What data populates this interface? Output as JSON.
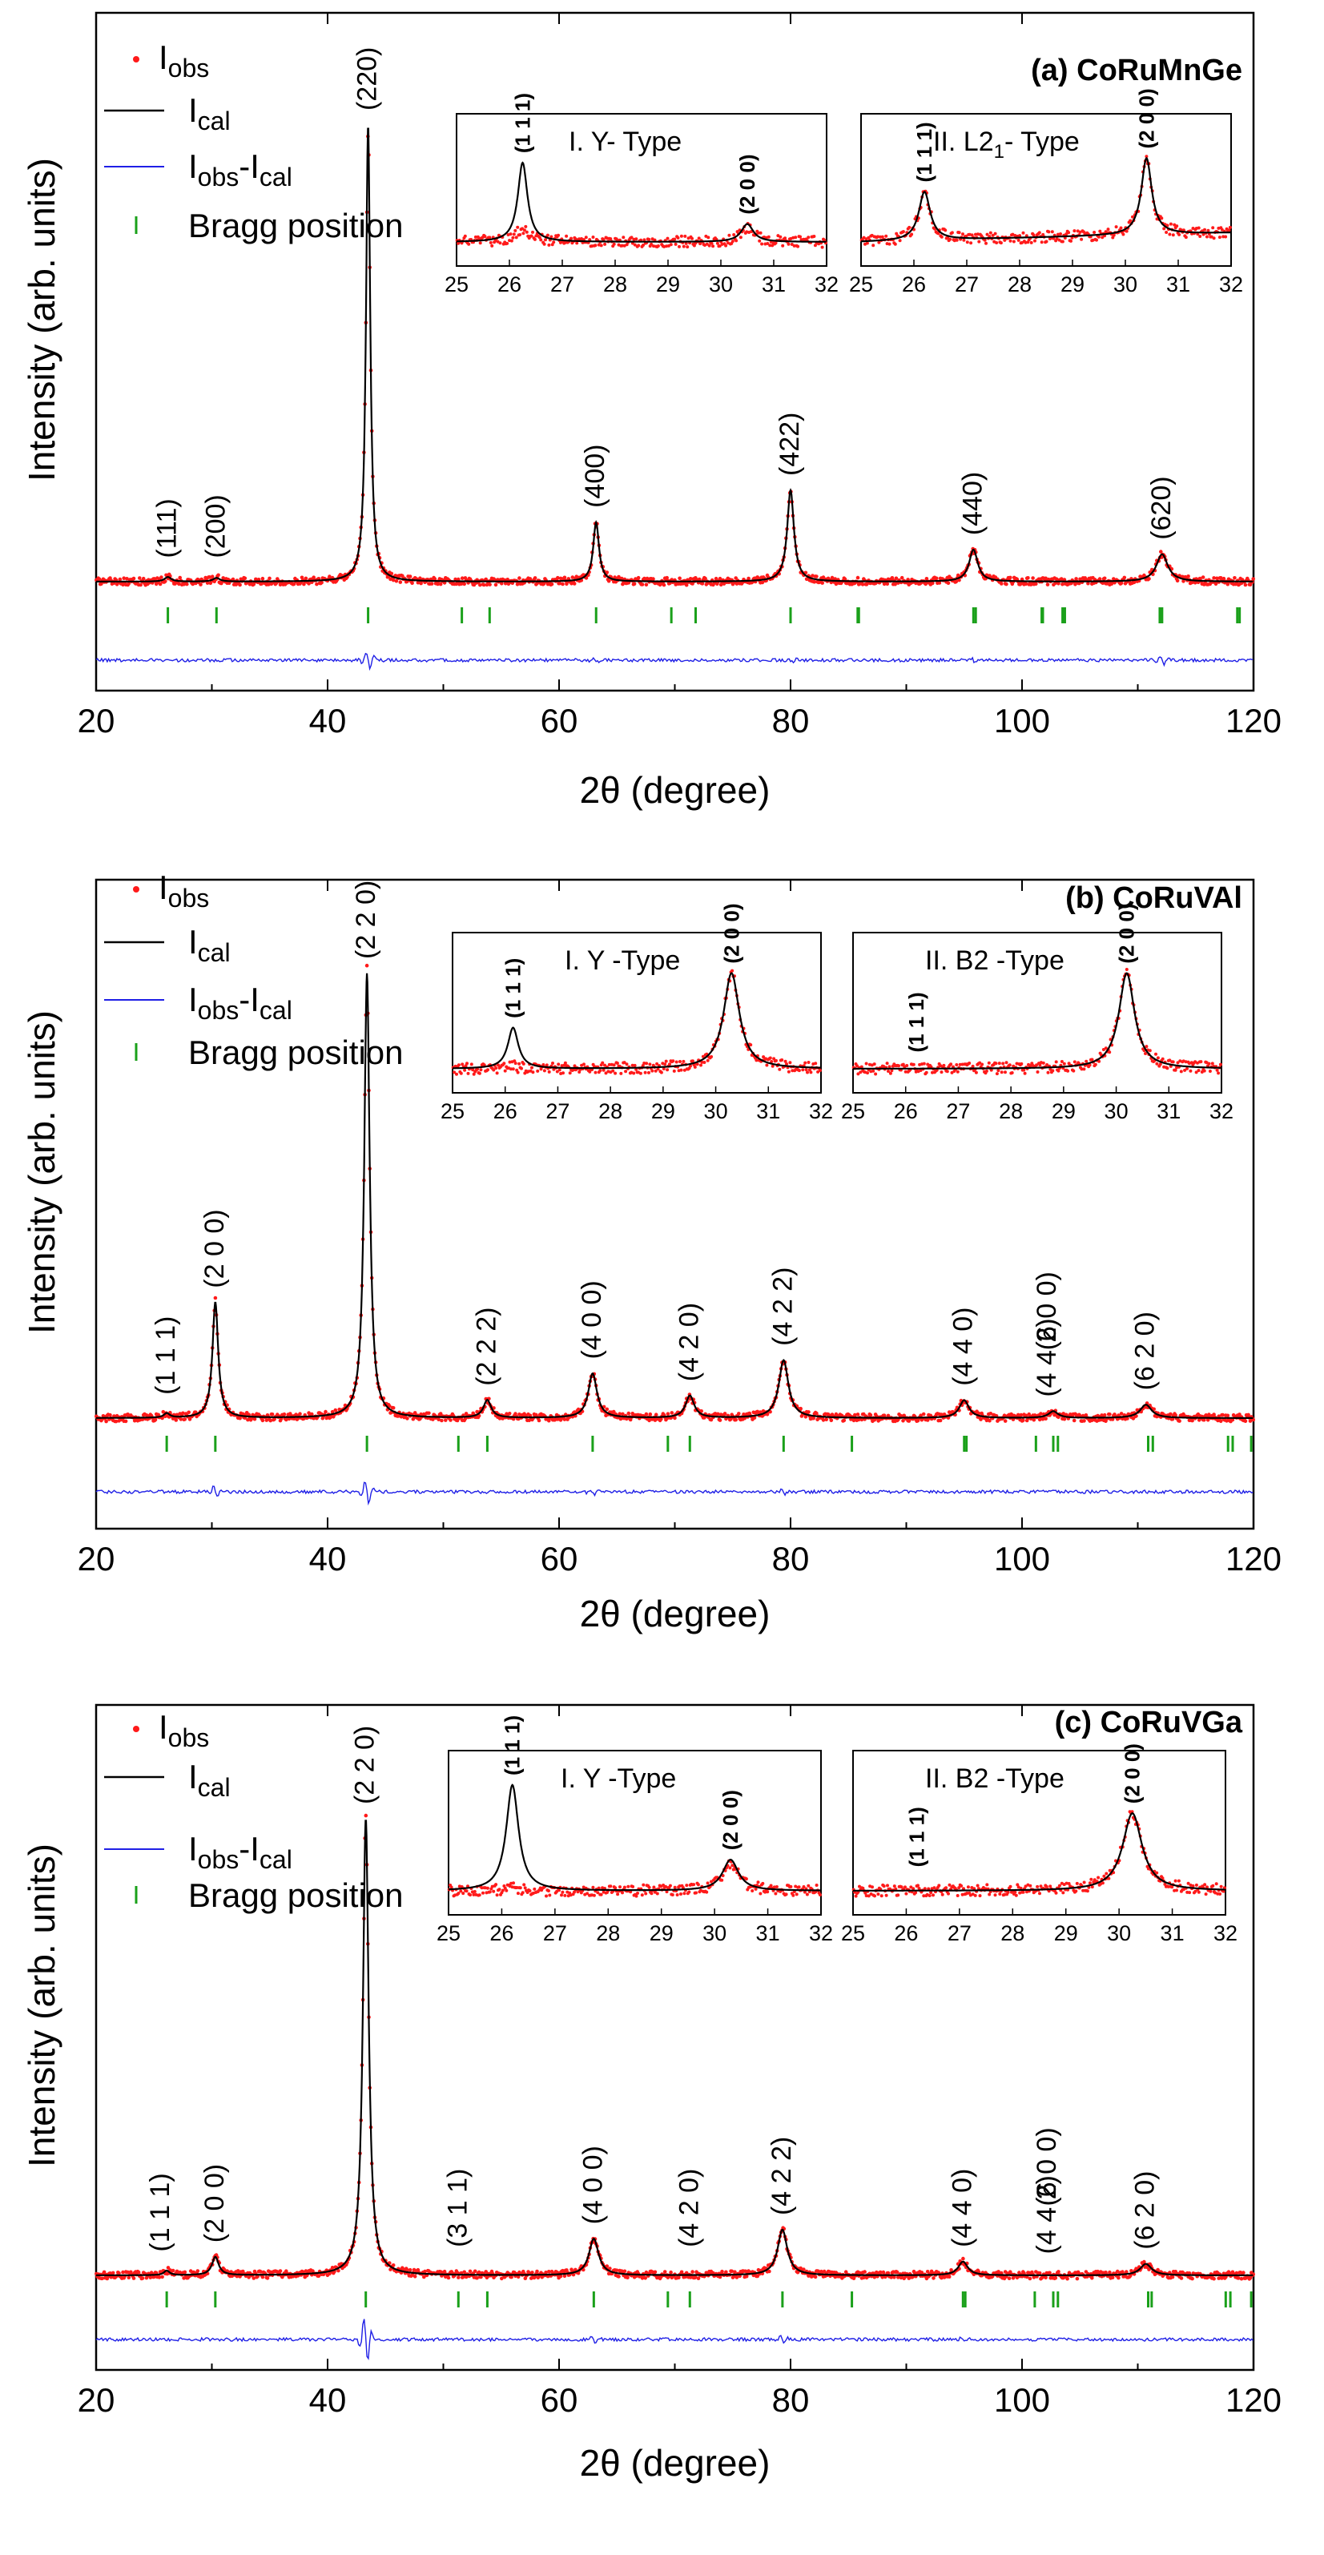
{
  "figure": {
    "axis_label_x": "2θ (degree)",
    "axis_label_y": "Intensity (arb. units)",
    "legend": {
      "obs": "I",
      "obs_sub": "obs",
      "cal": "I",
      "cal_sub": "cal",
      "diff_a": "I",
      "diff_a_sub": "obs",
      "diff_b": "-I",
      "diff_b_sub": "cal",
      "bragg": "Bragg position"
    },
    "colors": {
      "obs": "#ff1a1a",
      "cal": "#000000",
      "diff": "#1f1fe6",
      "bragg": "#1aa01a"
    }
  },
  "chart_data": [
    {
      "type": "scatter",
      "title": "(a) CoRuMnGe",
      "xlabel": "2θ (degree)",
      "ylabel": "Intensity (arb. units)",
      "xlim": [
        20,
        120
      ],
      "xticks": [
        20,
        40,
        60,
        80,
        100,
        120
      ],
      "series": [
        {
          "name": "Iobs"
        },
        {
          "name": "Ical"
        },
        {
          "name": "Iobs-Ical"
        },
        {
          "name": "Bragg position"
        }
      ],
      "peaks": [
        {
          "x": 26.2,
          "h": 0.01,
          "w": 0.35
        },
        {
          "x": 30.4,
          "h": 0.008,
          "w": 0.35
        },
        {
          "x": 43.5,
          "h": 1.0,
          "w": 0.22
        },
        {
          "x": 63.2,
          "h": 0.13,
          "w": 0.3
        },
        {
          "x": 80.0,
          "h": 0.2,
          "w": 0.35
        },
        {
          "x": 95.8,
          "h": 0.07,
          "w": 0.45
        },
        {
          "x": 112.1,
          "h": 0.06,
          "w": 0.6
        }
      ],
      "peak_labels": [
        {
          "text": "(111)",
          "x": 26.2,
          "h": 0.02
        },
        {
          "text": "(200)",
          "x": 30.4,
          "h": 0.02
        },
        {
          "text": "(220)",
          "x": 43.5,
          "h": 1.0
        },
        {
          "text": "(400)",
          "x": 63.2,
          "h": 0.13
        },
        {
          "text": "(422)",
          "x": 80.0,
          "h": 0.2
        },
        {
          "text": "(440)",
          "x": 95.8,
          "h": 0.07
        },
        {
          "text": "(620)",
          "x": 112.1,
          "h": 0.06
        }
      ],
      "bragg_positions": [
        26.2,
        30.4,
        43.5,
        51.6,
        54.0,
        63.2,
        69.7,
        71.8,
        80.0,
        85.8,
        85.9,
        95.8,
        96.0,
        101.7,
        101.8,
        103.5,
        103.7,
        111.9,
        112.1,
        118.6,
        118.8
      ],
      "diff_spikes": [
        {
          "x": 43.5,
          "a": 12
        },
        {
          "x": 63.2,
          "a": 3
        },
        {
          "x": 80.0,
          "a": 3
        },
        {
          "x": 95.8,
          "a": 3
        },
        {
          "x": 112.1,
          "a": 6
        }
      ],
      "insets": [
        {
          "title": "I. Y- Type",
          "sub": "",
          "title_tail": "",
          "xlim": [
            25,
            32
          ],
          "xticks": [
            25,
            26,
            27,
            28,
            29,
            30,
            31,
            32
          ],
          "peaks": [
            {
              "x": 26.25,
              "h": 0.62,
              "w": 0.11
            },
            {
              "x": 30.5,
              "h": 0.14,
              "w": 0.14
            }
          ],
          "obs_peaks": [
            {
              "x": 26.25,
              "h": 0.1,
              "w": 0.2
            },
            {
              "x": 30.5,
              "h": 0.12,
              "w": 0.14
            }
          ],
          "slope": 0.0,
          "labels": [
            {
              "text": "(1 1 1)",
              "x": 26.25,
              "h": 0.62
            },
            {
              "text": "(2 0 0)",
              "x": 30.5,
              "h": 0.14
            }
          ]
        },
        {
          "title": "II. L2",
          "sub": "1",
          "title_tail": "- Type",
          "xlim": [
            25,
            32
          ],
          "xticks": [
            25,
            26,
            27,
            28,
            29,
            30,
            31,
            32
          ],
          "peaks": [
            {
              "x": 26.2,
              "h": 0.38,
              "w": 0.13
            },
            {
              "x": 30.4,
              "h": 0.6,
              "w": 0.12
            }
          ],
          "obs_peaks": [
            {
              "x": 26.2,
              "h": 0.38,
              "w": 0.13
            },
            {
              "x": 30.4,
              "h": 0.6,
              "w": 0.12
            }
          ],
          "slope": 0.2,
          "labels": [
            {
              "text": "(1 1 1)",
              "x": 26.2,
              "h": 0.38
            },
            {
              "text": "(2 0 0)",
              "x": 30.4,
              "h": 0.6
            }
          ]
        }
      ]
    },
    {
      "type": "scatter",
      "title": "(b) CoRuVAl",
      "xlabel": "2θ (degree)",
      "ylabel": "Intensity (arb. units)",
      "xlim": [
        20,
        120
      ],
      "xticks": [
        20,
        40,
        60,
        80,
        100,
        120
      ],
      "series": [
        {
          "name": "Iobs"
        },
        {
          "name": "Ical"
        },
        {
          "name": "Iobs-Ical"
        },
        {
          "name": "Bragg position"
        }
      ],
      "peaks": [
        {
          "x": 26.1,
          "h": 0.01,
          "w": 0.3
        },
        {
          "x": 30.3,
          "h": 0.26,
          "w": 0.3
        },
        {
          "x": 43.4,
          "h": 1.0,
          "w": 0.28
        },
        {
          "x": 53.8,
          "h": 0.04,
          "w": 0.4
        },
        {
          "x": 62.9,
          "h": 0.1,
          "w": 0.45
        },
        {
          "x": 71.3,
          "h": 0.05,
          "w": 0.45
        },
        {
          "x": 79.4,
          "h": 0.13,
          "w": 0.5
        },
        {
          "x": 95.0,
          "h": 0.04,
          "w": 0.5
        },
        {
          "x": 102.7,
          "h": 0.015,
          "w": 0.5
        },
        {
          "x": 110.7,
          "h": 0.03,
          "w": 0.6
        }
      ],
      "peak_labels": [
        {
          "text": "(1 1 1)",
          "x": 26.1,
          "h": 0.02
        },
        {
          "text": "(2 0 0)",
          "x": 30.3,
          "h": 0.26
        },
        {
          "text": "(2 2 0)",
          "x": 43.4,
          "h": 1.0
        },
        {
          "text": "(2 2 2)",
          "x": 53.8,
          "h": 0.04
        },
        {
          "text": "(4 0 0)",
          "x": 62.9,
          "h": 0.1
        },
        {
          "text": "(4 2 0)",
          "x": 71.3,
          "h": 0.05
        },
        {
          "text": "(4 2 2)",
          "x": 79.4,
          "h": 0.13
        },
        {
          "text": "(4 4 0)",
          "x": 95.0,
          "h": 0.04
        },
        {
          "text": "(4 4 2)",
          "x": 102.2,
          "h": 0.015
        },
        {
          "text": "(6 0 0)",
          "x": 102.2,
          "h": 0.12
        },
        {
          "text": "(6 2 0)",
          "x": 110.7,
          "h": 0.03
        }
      ],
      "bragg_positions": [
        26.1,
        30.3,
        43.4,
        51.3,
        53.8,
        62.9,
        69.4,
        71.3,
        79.4,
        85.3,
        95.0,
        95.2,
        101.2,
        102.7,
        103.1,
        110.9,
        111.3,
        117.8,
        118.2,
        119.8
      ],
      "diff_spikes": [
        {
          "x": 30.3,
          "a": 8
        },
        {
          "x": 43.4,
          "a": 16
        },
        {
          "x": 62.9,
          "a": 3
        },
        {
          "x": 79.4,
          "a": 3
        }
      ],
      "insets": [
        {
          "title": "I. Y -Type",
          "sub": "",
          "title_tail": "",
          "xlim": [
            25,
            32
          ],
          "xticks": [
            25,
            26,
            27,
            28,
            29,
            30,
            31,
            32
          ],
          "peaks": [
            {
              "x": 26.15,
              "h": 0.3,
              "w": 0.12
            },
            {
              "x": 30.3,
              "h": 0.7,
              "w": 0.18
            }
          ],
          "obs_peaks": [
            {
              "x": 26.15,
              "h": 0.02,
              "w": 0.12
            },
            {
              "x": 30.3,
              "h": 0.7,
              "w": 0.18
            }
          ],
          "slope": 0.0,
          "labels": [
            {
              "text": "(1 1 1)",
              "x": 26.15,
              "h": 0.3
            },
            {
              "text": "(2 0 0)",
              "x": 30.3,
              "h": 0.7
            }
          ]
        },
        {
          "title": "II. B2 -Type",
          "sub": "",
          "title_tail": "",
          "xlim": [
            25,
            32
          ],
          "xticks": [
            25,
            26,
            27,
            28,
            29,
            30,
            31,
            32
          ],
          "peaks": [
            {
              "x": 30.2,
              "h": 0.7,
              "w": 0.18
            }
          ],
          "obs_peaks": [
            {
              "x": 30.2,
              "h": 0.7,
              "w": 0.18
            }
          ],
          "slope": 0.0,
          "labels": [
            {
              "text": "(1 1 1)",
              "x": 26.2,
              "h": 0.05
            },
            {
              "text": "(2 0 0)",
              "x": 30.2,
              "h": 0.7
            }
          ]
        }
      ]
    },
    {
      "type": "scatter",
      "title": "(c) CoRuVGa",
      "xlabel": "2θ (degree)",
      "ylabel": "Intensity (arb. units)",
      "xlim": [
        20,
        120
      ],
      "xticks": [
        20,
        40,
        60,
        80,
        100,
        120
      ],
      "series": [
        {
          "name": "Iobs"
        },
        {
          "name": "Ical"
        },
        {
          "name": "Iobs-Ical"
        },
        {
          "name": "Bragg position"
        }
      ],
      "peaks": [
        {
          "x": 26.1,
          "h": 0.01,
          "w": 0.3
        },
        {
          "x": 30.3,
          "h": 0.04,
          "w": 0.35
        },
        {
          "x": 43.3,
          "h": 1.0,
          "w": 0.3
        },
        {
          "x": 63.0,
          "h": 0.08,
          "w": 0.5
        },
        {
          "x": 79.3,
          "h": 0.1,
          "w": 0.5
        },
        {
          "x": 94.9,
          "h": 0.03,
          "w": 0.5
        },
        {
          "x": 110.7,
          "h": 0.025,
          "w": 0.6
        }
      ],
      "peak_labels": [
        {
          "text": "(1 1 1)",
          "x": 25.6,
          "h": 0.02
        },
        {
          "text": "(2 0 0)",
          "x": 30.3,
          "h": 0.04
        },
        {
          "text": "(2 2 0)",
          "x": 43.3,
          "h": 1.0
        },
        {
          "text": "(3 1 1)",
          "x": 51.3,
          "h": 0.03
        },
        {
          "text": "(4 0 0)",
          "x": 63.0,
          "h": 0.08
        },
        {
          "text": "(4 2 0)",
          "x": 71.3,
          "h": 0.03
        },
        {
          "text": "(4 2 2)",
          "x": 79.3,
          "h": 0.1
        },
        {
          "text": "(4 4 0)",
          "x": 94.9,
          "h": 0.03
        },
        {
          "text": "(4 4 2)",
          "x": 102.2,
          "h": 0.015
        },
        {
          "text": "(6 0 0)",
          "x": 102.2,
          "h": 0.12
        },
        {
          "text": "(6 2 0)",
          "x": 110.7,
          "h": 0.025
        }
      ],
      "bragg_positions": [
        26.1,
        30.3,
        43.3,
        51.3,
        53.8,
        63.0,
        69.4,
        71.3,
        79.3,
        85.3,
        94.9,
        95.1,
        101.1,
        102.7,
        103.1,
        110.9,
        111.2,
        117.6,
        118.0,
        119.8
      ],
      "diff_spikes": [
        {
          "x": 43.3,
          "a": 30
        },
        {
          "x": 63.0,
          "a": 4
        },
        {
          "x": 79.3,
          "a": 5
        },
        {
          "x": 94.9,
          "a": 3
        }
      ],
      "insets": [
        {
          "title": "I. Y -Type",
          "sub": "",
          "title_tail": "",
          "xlim": [
            25,
            32
          ],
          "xticks": [
            25,
            26,
            27,
            28,
            29,
            30,
            31,
            32
          ],
          "peaks": [
            {
              "x": 26.2,
              "h": 0.75,
              "w": 0.14
            },
            {
              "x": 30.3,
              "h": 0.22,
              "w": 0.18
            }
          ],
          "obs_peaks": [
            {
              "x": 26.2,
              "h": 0.03,
              "w": 0.14
            },
            {
              "x": 30.3,
              "h": 0.2,
              "w": 0.18
            }
          ],
          "slope": 0.0,
          "labels": [
            {
              "text": "(1 1 1)",
              "x": 26.2,
              "h": 0.75
            },
            {
              "text": "(2 0 0)",
              "x": 30.3,
              "h": 0.22
            }
          ]
        },
        {
          "title": "II. B2 -Type",
          "sub": "",
          "title_tail": "",
          "xlim": [
            25,
            32
          ],
          "xticks": [
            25,
            26,
            27,
            28,
            29,
            30,
            31,
            32
          ],
          "peaks": [
            {
              "x": 30.25,
              "h": 0.55,
              "w": 0.22
            }
          ],
          "obs_peaks": [
            {
              "x": 30.25,
              "h": 0.55,
              "w": 0.22
            }
          ],
          "slope": 0.0,
          "labels": [
            {
              "text": "(1 1 1)",
              "x": 26.2,
              "h": 0.1
            },
            {
              "text": "(2 0 0)",
              "x": 30.25,
              "h": 0.55
            }
          ]
        }
      ]
    }
  ]
}
